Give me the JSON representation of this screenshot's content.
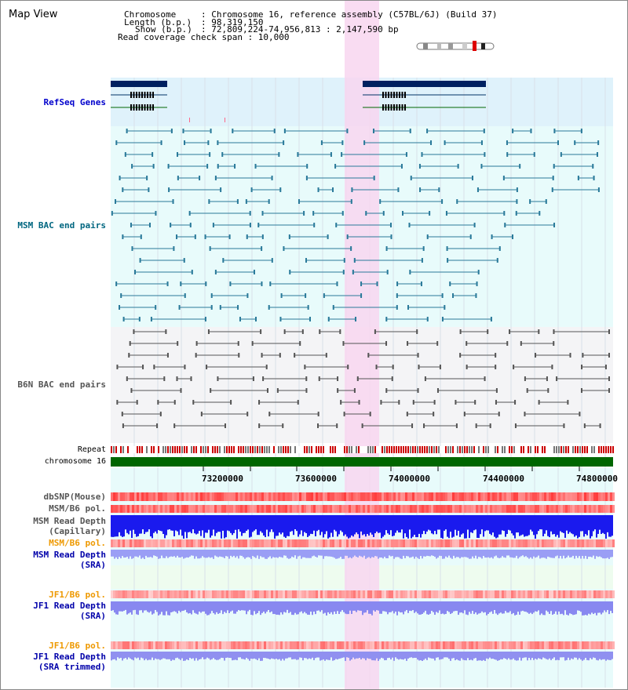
{
  "title": "Map View",
  "info": {
    "chromosome_key": "Chromosome",
    "chromosome_val": ": Chromosome 16, reference assembly (C57BL/6J) (Build 37)",
    "length_key": "Length (b.p.)",
    "length_val": ": 98,319,150",
    "show_key": "Show (b.p.)",
    "show_val": ": 72,809,224-74,956,813 : 2,147,590 bp",
    "coverage_text": "Read coverage check span : 10,000"
  },
  "tracks": {
    "refseq": "RefSeq Genes",
    "msm_bac": "MSM BAC end pairs",
    "b6n_bac": "B6N BAC end pairs",
    "repeat": "Repeat",
    "chromosome": "chromosome 16",
    "dbsnp": "dbSNP(Mouse)",
    "msm_b6_pol_1": "MSM/B6 pol.",
    "msm_read_depth_cap_1": "MSM Read Depth",
    "msm_read_depth_cap_2": "(Capillary)",
    "msm_b6_pol_2": "MSM/B6 pol.",
    "msm_read_depth_sra_1": "MSM Read Depth",
    "msm_read_depth_sra_2": "(SRA)",
    "jf1_b6_pol_1": "JF1/B6 pol.",
    "jf1_read_depth_sra_1": "JF1 Read Depth",
    "jf1_read_depth_sra_2": "(SRA)",
    "jf1_b6_pol_2": "JF1/B6 pol.",
    "jf1_read_depth_trim_1": "JF1 Read Depth",
    "jf1_read_depth_trim_2": "(SRA trimmed)"
  },
  "axis": {
    "ticks": [
      "73200000",
      "73600000",
      "74000000",
      "74400000",
      "74800000"
    ]
  },
  "colors": {
    "refseq_bg": "#dff2fb",
    "msm_bg": "#e8fbfb",
    "b6n_bg": "#f4f4f6",
    "highlight": "#f8d6f0",
    "refseq_label": "#0000cc",
    "msm_label": "#006680",
    "b6n_label": "#555555",
    "pol_label": "#ee9900",
    "depth_label": "#0000aa",
    "chromosome_bar": "#006600",
    "depth_blue": "#1a1aee",
    "depth_light": "#8888f0"
  }
}
